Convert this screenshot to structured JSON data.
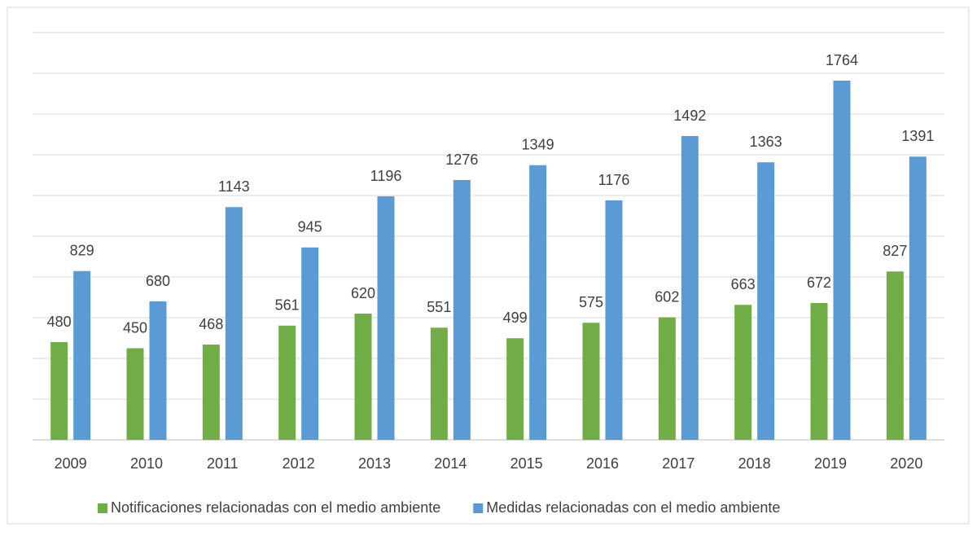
{
  "chart_data": {
    "type": "bar",
    "categories": [
      "2009",
      "2010",
      "2011",
      "2012",
      "2013",
      "2014",
      "2015",
      "2016",
      "2017",
      "2018",
      "2019",
      "2020"
    ],
    "series": [
      {
        "name": "Notificaciones relacionadas con el medio ambiente",
        "color": "#70ad47",
        "values": [
          480,
          450,
          468,
          561,
          620,
          551,
          499,
          575,
          602,
          663,
          672,
          827
        ]
      },
      {
        "name": "Medidas relacionadas con el medio ambiente",
        "color": "#5b9bd5",
        "values": [
          829,
          680,
          1143,
          945,
          1196,
          1276,
          1349,
          1176,
          1492,
          1363,
          1764,
          1391
        ]
      }
    ],
    "ylim": [
      0,
      2000
    ],
    "yticks": [
      0,
      200,
      400,
      600,
      800,
      1000,
      1200,
      1400,
      1600,
      1800,
      2000
    ],
    "grid": true,
    "legend": "bottom"
  }
}
